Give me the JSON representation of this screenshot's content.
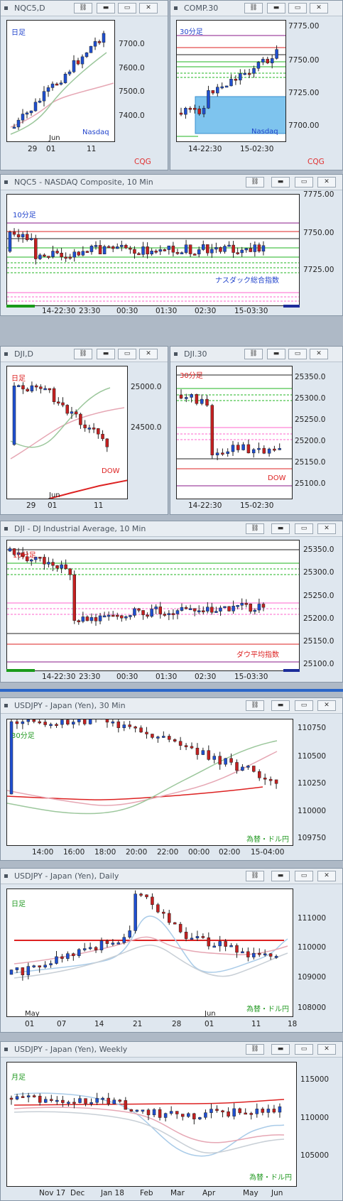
{
  "colors": {
    "up": "#1f4fd0",
    "down": "#c42020",
    "ma_fast": "#9cc79c",
    "ma_slow": "#e6a7b4",
    "hline_green": "#22b622",
    "hline_purple": "#8a1a8a",
    "hline_red": "#dd2222",
    "hline_pink": "#ff66cc",
    "hline_black": "#222222",
    "box": "#7ec4ee"
  },
  "panels": [
    {
      "id": "nqc5d",
      "title": "NQC5,D",
      "buttons": [
        "link-icon",
        "minimize-icon",
        "restore-icon",
        "close-icon"
      ],
      "period_label": "日足",
      "period_color": "#2244cc",
      "name_label": "Nasdaq",
      "name_color": "#2244cc",
      "yticks": [
        "7700.0",
        "7600.0",
        "7500.0",
        "7400.0"
      ],
      "xticks": [
        "29",
        "01",
        "11"
      ],
      "xsub": [
        "Jun"
      ],
      "logo": "CQG"
    },
    {
      "id": "comp30",
      "title": "COMP.30",
      "buttons": [
        "link-icon",
        "minimize-icon",
        "restore-icon",
        "close-icon"
      ],
      "period_label": "30分足",
      "period_color": "#2244cc",
      "name_label": "Nasdaq",
      "name_color": "#2244cc",
      "yticks": [
        "7775.00",
        "7750.00",
        "7725.00",
        "7700.00"
      ],
      "xticks": [
        "14-22:30",
        "15-02:30"
      ],
      "logo": "CQG"
    },
    {
      "id": "nqc510",
      "title": "NQC5 - NASDAQ Composite, 10 Min",
      "buttons": [
        "link-icon",
        "minimize-icon",
        "restore-icon",
        "close-icon"
      ],
      "period_label": "10分足",
      "period_color": "#2244cc",
      "name_label": "ナスダック総合指数",
      "name_color": "#2244cc",
      "yticks": [
        "7775.00",
        "7750.00",
        "7725.00"
      ],
      "xticks": [
        "14-22:30",
        "23:30",
        "00:30",
        "01:30",
        "02:30",
        "15-03:30"
      ]
    },
    {
      "id": "djid",
      "title": "DJI,D",
      "buttons": [
        "link-icon",
        "minimize-icon",
        "restore-icon",
        "close-icon"
      ],
      "period_label": "日足",
      "period_color": "#dd2222",
      "name_label": "DOW",
      "name_color": "#dd2222",
      "yticks": [
        "25000.0",
        "24500.0"
      ],
      "xticks": [
        "29",
        "01",
        "11"
      ],
      "xsub": [
        "Jun"
      ]
    },
    {
      "id": "dji30",
      "title": "DJI.30",
      "buttons": [
        "link-icon",
        "minimize-icon",
        "restore-icon",
        "close-icon"
      ],
      "period_label": "30分足",
      "period_color": "#dd2222",
      "name_label": "DOW",
      "name_color": "#dd2222",
      "yticks": [
        "25350.0",
        "25300.0",
        "25250.0",
        "25200.0",
        "25150.0",
        "25100.0"
      ],
      "xticks": [
        "14-22:30",
        "15-02:30"
      ]
    },
    {
      "id": "dji10",
      "title": "DJI - DJ Industrial Average, 10 Min",
      "buttons": [
        "link-icon",
        "minimize-icon",
        "restore-icon",
        "close-icon"
      ],
      "period_label": "10分足",
      "period_color": "#dd2222",
      "name_label": "ダウ平均指数",
      "name_color": "#dd2222",
      "yticks": [
        "25350.0",
        "25300.0",
        "25250.0",
        "25200.0",
        "25150.0",
        "25100.0"
      ],
      "xticks": [
        "14-22:30",
        "23:30",
        "00:30",
        "01:30",
        "02:30",
        "15-03:30"
      ]
    },
    {
      "id": "usdjpy30",
      "title": "USDJPY - Japan (Yen), 30 Min",
      "buttons": [
        "link-icon",
        "minimize-icon",
        "restore-icon",
        "close-icon"
      ],
      "period_label": "30分足",
      "period_color": "#229922",
      "name_label": "為替・ドル円",
      "name_color": "#229922",
      "yticks": [
        "110750",
        "110500",
        "110250",
        "110000",
        "109750"
      ],
      "xticks": [
        "14:00",
        "16:00",
        "18:00",
        "20:00",
        "22:00",
        "00:00",
        "02:00",
        "15-04:00"
      ]
    },
    {
      "id": "usdjpyd",
      "title": "USDJPY - Japan (Yen), Daily",
      "buttons": [
        "link-icon",
        "minimize-icon",
        "restore-icon",
        "close-icon"
      ],
      "period_label": "日足",
      "period_color": "#229922",
      "name_label": "為替・ドル円",
      "name_color": "#229922",
      "yticks": [
        "111000",
        "110000",
        "109000",
        "108000"
      ],
      "xticks": [
        "01",
        "07",
        "14",
        "21",
        "28",
        "01",
        "11",
        "18"
      ],
      "xsub": [
        "May",
        "Jun"
      ]
    },
    {
      "id": "usdjpyw",
      "title": "USDJPY - Japan (Yen), Weekly",
      "buttons": [
        "link-icon",
        "minimize-icon",
        "restore-icon",
        "close-icon"
      ],
      "period_label": "月足",
      "period_color": "#229922",
      "name_label": "為替・ドル円",
      "name_color": "#229922",
      "yticks": [
        "115000",
        "110000",
        "105000"
      ],
      "xticks": [
        "Nov 17",
        "Dec",
        "Jan 18",
        "Feb",
        "Mar",
        "Apr",
        "May",
        "Jun"
      ]
    }
  ]
}
